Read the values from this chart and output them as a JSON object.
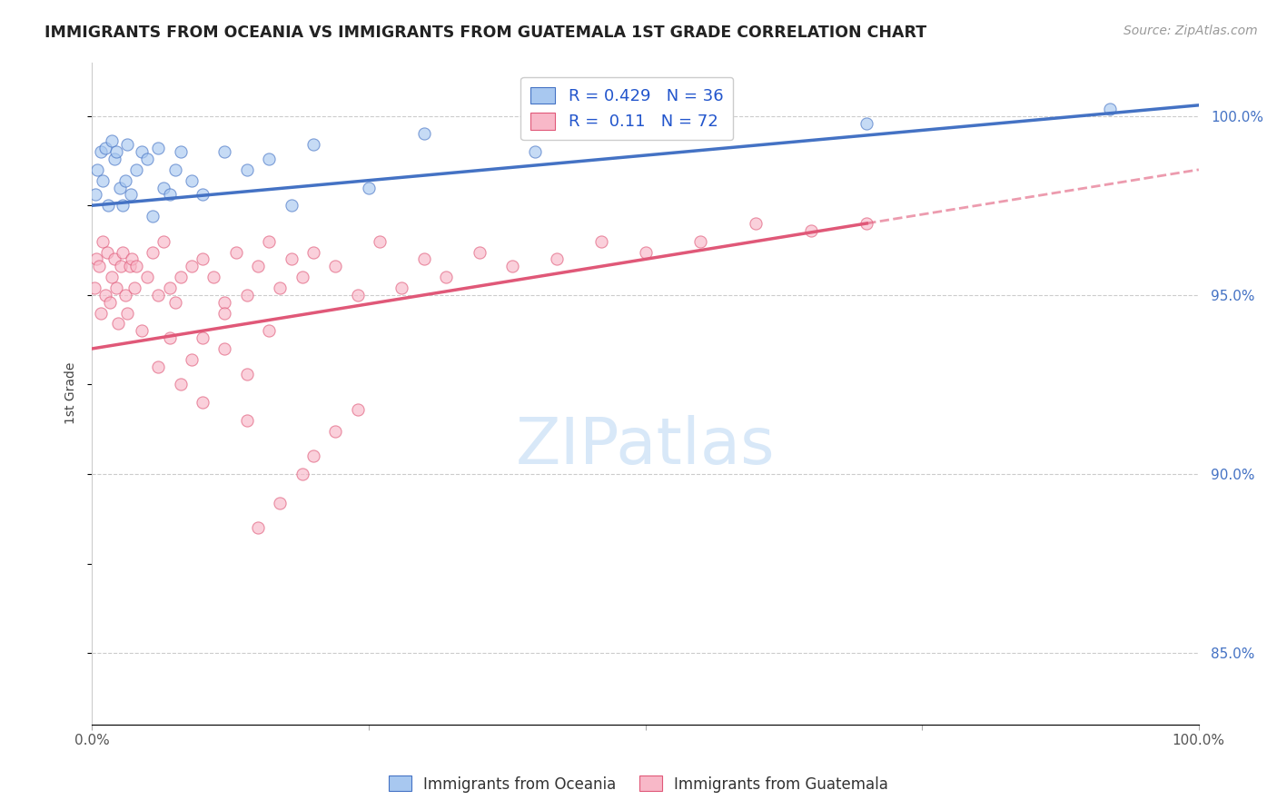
{
  "title": "IMMIGRANTS FROM OCEANIA VS IMMIGRANTS FROM GUATEMALA 1ST GRADE CORRELATION CHART",
  "source_text": "Source: ZipAtlas.com",
  "ylabel": "1st Grade",
  "xlim": [
    0.0,
    100.0
  ],
  "ylim": [
    83.0,
    101.5
  ],
  "right_yticks": [
    85.0,
    90.0,
    95.0,
    100.0
  ],
  "right_yticklabels": [
    "85.0%",
    "90.0%",
    "95.0%",
    "100.0%"
  ],
  "legend_label1": "Immigrants from Oceania",
  "legend_label2": "Immigrants from Guatemala",
  "R1": 0.429,
  "N1": 36,
  "R2": 0.11,
  "N2": 72,
  "color_oceania": "#A8C8F0",
  "color_guatemala": "#F8B8C8",
  "color_line_oceania": "#4472C4",
  "color_line_guatemala": "#E05878",
  "scatter_alpha": 0.65,
  "scatter_size": 90,
  "oceania_x": [
    0.3,
    0.5,
    0.8,
    1.0,
    1.2,
    1.5,
    1.8,
    2.0,
    2.2,
    2.5,
    2.8,
    3.0,
    3.2,
    3.5,
    4.0,
    4.5,
    5.0,
    5.5,
    6.0,
    6.5,
    7.0,
    7.5,
    8.0,
    9.0,
    10.0,
    12.0,
    14.0,
    16.0,
    18.0,
    20.0,
    25.0,
    30.0,
    40.0,
    55.0,
    70.0,
    92.0
  ],
  "oceania_y": [
    97.8,
    98.5,
    99.0,
    98.2,
    99.1,
    97.5,
    99.3,
    98.8,
    99.0,
    98.0,
    97.5,
    98.2,
    99.2,
    97.8,
    98.5,
    99.0,
    98.8,
    97.2,
    99.1,
    98.0,
    97.8,
    98.5,
    99.0,
    98.2,
    97.8,
    99.0,
    98.5,
    98.8,
    97.5,
    99.2,
    98.0,
    99.5,
    99.0,
    99.5,
    99.8,
    100.2
  ],
  "guatemala_x": [
    0.2,
    0.4,
    0.6,
    0.8,
    1.0,
    1.2,
    1.4,
    1.6,
    1.8,
    2.0,
    2.2,
    2.4,
    2.6,
    2.8,
    3.0,
    3.2,
    3.4,
    3.6,
    3.8,
    4.0,
    4.5,
    5.0,
    5.5,
    6.0,
    6.5,
    7.0,
    7.5,
    8.0,
    9.0,
    10.0,
    11.0,
    12.0,
    13.0,
    14.0,
    15.0,
    16.0,
    17.0,
    18.0,
    19.0,
    20.0,
    22.0,
    24.0,
    26.0,
    28.0,
    30.0,
    32.0,
    35.0,
    38.0,
    42.0,
    46.0,
    50.0,
    55.0,
    60.0,
    65.0,
    70.0,
    20.0,
    22.0,
    24.0,
    15.0,
    17.0,
    19.0,
    10.0,
    12.0,
    14.0,
    6.0,
    7.0,
    8.0,
    9.0,
    10.0,
    12.0,
    14.0,
    16.0
  ],
  "guatemala_y": [
    95.2,
    96.0,
    95.8,
    94.5,
    96.5,
    95.0,
    96.2,
    94.8,
    95.5,
    96.0,
    95.2,
    94.2,
    95.8,
    96.2,
    95.0,
    94.5,
    95.8,
    96.0,
    95.2,
    95.8,
    94.0,
    95.5,
    96.2,
    95.0,
    96.5,
    95.2,
    94.8,
    95.5,
    95.8,
    96.0,
    95.5,
    94.8,
    96.2,
    95.0,
    95.8,
    96.5,
    95.2,
    96.0,
    95.5,
    96.2,
    95.8,
    95.0,
    96.5,
    95.2,
    96.0,
    95.5,
    96.2,
    95.8,
    96.0,
    96.5,
    96.2,
    96.5,
    97.0,
    96.8,
    97.0,
    90.5,
    91.2,
    91.8,
    88.5,
    89.2,
    90.0,
    92.0,
    93.5,
    91.5,
    93.0,
    93.8,
    92.5,
    93.2,
    93.8,
    94.5,
    92.8,
    94.0
  ],
  "line_oceania_x0": 0.0,
  "line_oceania_y0": 97.5,
  "line_oceania_x1": 100.0,
  "line_oceania_y1": 100.3,
  "line_guatemala_x0": 0.0,
  "line_guatemala_y0": 93.5,
  "line_guatemala_x1": 70.0,
  "line_guatemala_y1": 97.0,
  "line_guatemala_dash_x0": 70.0,
  "line_guatemala_dash_y0": 97.0,
  "line_guatemala_dash_x1": 100.0,
  "line_guatemala_dash_y1": 98.5,
  "watermark_text": "ZIPatlas",
  "watermark_color": "#D8E8F8",
  "watermark_fontsize": 52
}
